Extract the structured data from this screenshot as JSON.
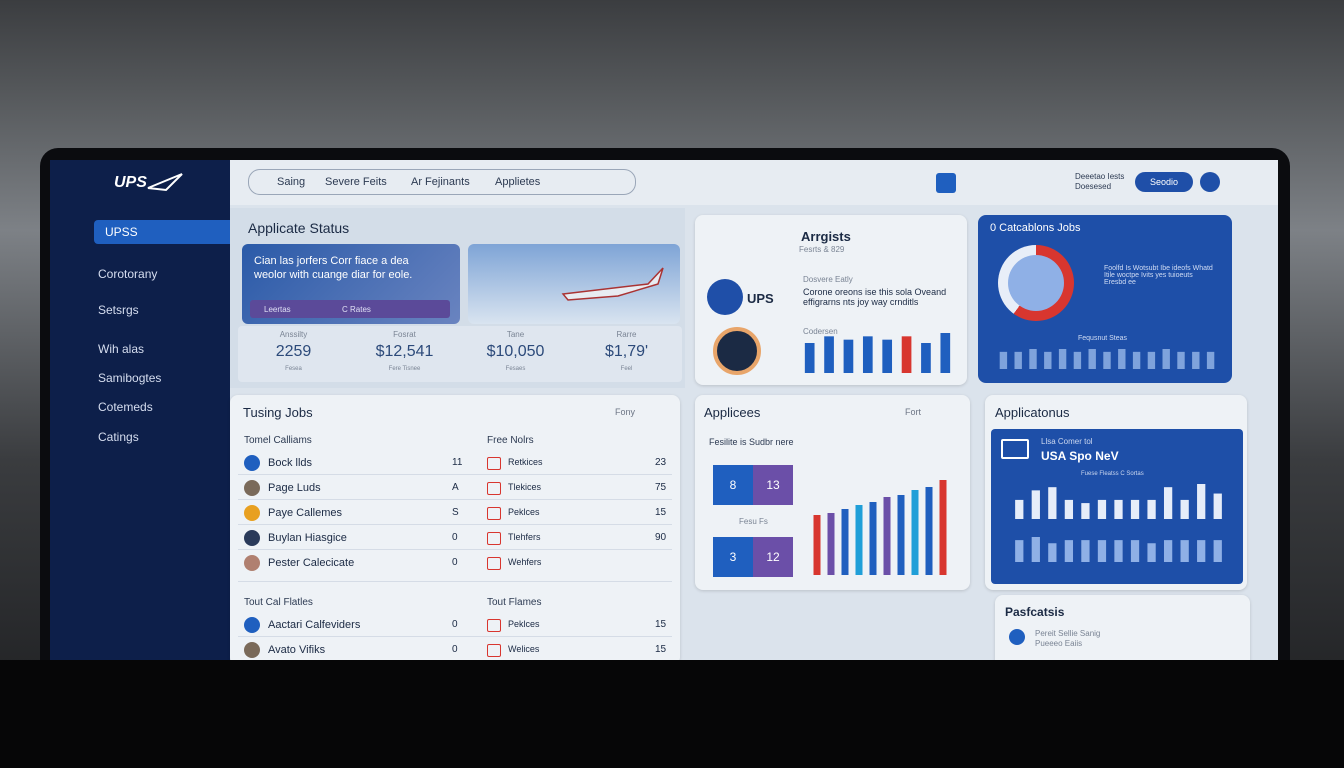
{
  "sidebar": {
    "logo": "UPS",
    "items": [
      "UPSS",
      "Corotorany",
      "Setsrgs",
      "Wih alas",
      "Samibogtes",
      "Cotemeds",
      "Catings"
    ]
  },
  "topbar": {
    "search": "Saing",
    "breadcrumbs": [
      "Severe Feits",
      "Ar Fejinants",
      "Applietes"
    ],
    "user_text": [
      "Deeetao Iests",
      "Doesesed"
    ],
    "button": "Seodio"
  },
  "application_status": {
    "title": "Applicate Status",
    "promo": "Cian las jorfers Corr fiace a dea weolor with cuange diar for eole.",
    "promo_bar": [
      "Leertas",
      "C Rates"
    ],
    "stats": [
      {
        "label": "Anssilty",
        "value": "2259",
        "sub": "Fesea"
      },
      {
        "label": "Fosrat",
        "value": "$12,541",
        "sub": "Fere Tisnee"
      },
      {
        "label": "Tane",
        "value": "$10,050",
        "sub": "Fesaes"
      },
      {
        "label": "Rarre",
        "value": "$1,79'",
        "sub": "Feel"
      }
    ]
  },
  "arrgists": {
    "title": "Arrgists",
    "subtitle": "Fesrts & 829",
    "logo": "UPS",
    "heading": "Dosvere Eatly",
    "text": "Corone oreons ise this sola Oveand effigrarns nts joy way crnditls",
    "chart_label": "Codersen",
    "chart": {
      "values": [
        45,
        55,
        50,
        55,
        50,
        55,
        45,
        60
      ],
      "colors": [
        "#1f5fbf",
        "#1f5fbf",
        "#1f5fbf",
        "#1f5fbf",
        "#1f5fbf",
        "#d8362f",
        "#1f5fbf",
        "#1f5fbf"
      ]
    }
  },
  "calc_jobs": {
    "title": "0 Catcablons Jobs",
    "text": "Foolfd Is Wotsubt Ibe ideofs Whatd Itile woctpe Ivits yes tuioeuts Eresbd ee",
    "footer": "Fequsnut Steas",
    "chart": {
      "values": [
        30,
        30,
        35,
        30,
        35,
        30,
        35,
        30,
        35,
        30,
        30,
        35,
        30,
        30,
        30
      ],
      "colors": [
        "#7fa3dc",
        "#7fa3dc",
        "#7fa3dc",
        "#7fa3dc",
        "#7fa3dc",
        "#7fa3dc",
        "#7fa3dc",
        "#7fa3dc",
        "#7fa3dc",
        "#7fa3dc",
        "#7fa3dc",
        "#7fa3dc",
        "#7fa3dc",
        "#7fa3dc",
        "#7fa3dc"
      ]
    }
  },
  "tusing_jobs": {
    "title": "Tusing Jobs",
    "filter": "Fony",
    "sections": [
      {
        "headers": [
          "Tomel Calliams",
          "Free Nolrs"
        ],
        "rows": [
          [
            "Bock llds",
            "11",
            "Retkices",
            "23"
          ],
          [
            "Page Luds",
            "A",
            "Tlekices",
            "75"
          ],
          [
            "Paye Callemes",
            "S",
            "Peklces",
            "15"
          ],
          [
            "Buylan Hiasgice",
            "0",
            "Tlehfers",
            "90"
          ],
          [
            "Pester Calecicate",
            "0",
            "Wehfers",
            ""
          ]
        ]
      },
      {
        "headers": [
          "Tout Cal Flatles",
          "Tout Flames"
        ],
        "rows": [
          [
            "Aactari Calfeviders",
            "0",
            "Peklces",
            "15"
          ],
          [
            "Avato Vifiks",
            "0",
            "Welices",
            "15"
          ]
        ]
      }
    ]
  },
  "applicees": {
    "title": "Applicees",
    "filter": "Fort",
    "subtitle": "Fesilite is Sudbr nere",
    "tiles": [
      "8",
      "13",
      "3",
      "12"
    ],
    "tile_label": "Fesu Fs",
    "chart": {
      "values": [
        60,
        62,
        66,
        70,
        73,
        78,
        80,
        85,
        88,
        95
      ],
      "colors": [
        "#d8362f",
        "#6b4fa8",
        "#1f5fbf",
        "#1f9fd8",
        "#1f5fbf",
        "#6b4fa8",
        "#1f5fbf",
        "#1f9fd8",
        "#1f5fbf",
        "#d8362f"
      ]
    }
  },
  "applicatonus": {
    "title": "Applicatonus",
    "card_small": "Llsa Comer tol",
    "card_title": "USA Spo NeV",
    "card_label": "Fuese Fleatss C Sortas",
    "chart_top": {
      "values": [
        30,
        45,
        50,
        30,
        25,
        30,
        30,
        30,
        30,
        50,
        30,
        55,
        40
      ],
      "colors": [
        "#e6edf9",
        "#e6edf9",
        "#e6edf9",
        "#e6edf9",
        "#e6edf9",
        "#e6edf9",
        "#e6edf9",
        "#e6edf9",
        "#e6edf9",
        "#e6edf9",
        "#e6edf9",
        "#e6edf9",
        "#e6edf9"
      ]
    },
    "chart_bottom": {
      "values": [
        35,
        40,
        30,
        35,
        35,
        35,
        35,
        35,
        30,
        35,
        35,
        35,
        35
      ],
      "colors": [
        "#8fb0e6",
        "#8fb0e6",
        "#8fb0e6",
        "#8fb0e6",
        "#8fb0e6",
        "#8fb0e6",
        "#8fb0e6",
        "#8fb0e6",
        "#8fb0e6",
        "#8fb0e6",
        "#8fb0e6",
        "#8fb0e6",
        "#8fb0e6"
      ]
    }
  },
  "pasfcatsis": {
    "title": "Pasfcatsis",
    "items": [
      "Pereit Sellie Sanig",
      "Pueeeo Eaiis"
    ]
  }
}
